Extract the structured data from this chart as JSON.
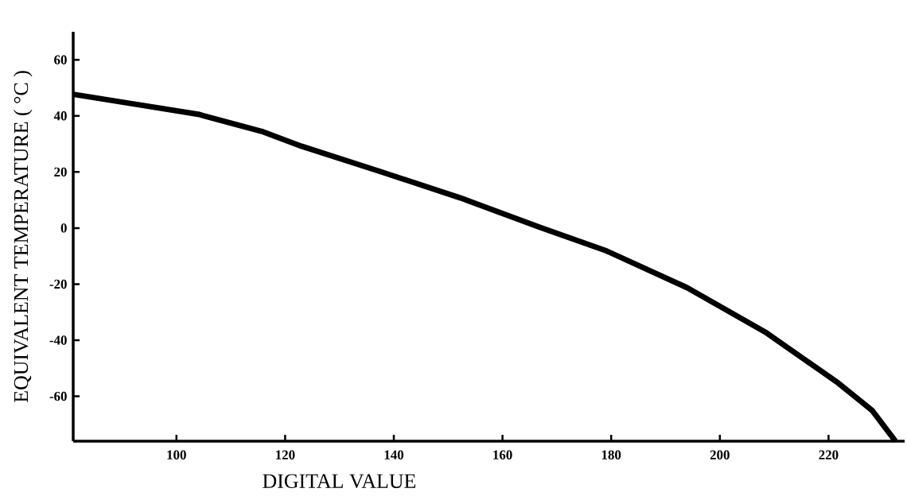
{
  "chart_data": {
    "type": "line",
    "xlabel": "DIGITAL VALUE",
    "ylabel": "EQUIVALENT TEMPERATURE ( °C )",
    "x": [
      81,
      92,
      104,
      116,
      123,
      137.6,
      152.2,
      166.8,
      179.2,
      194,
      208.6,
      221.8,
      228,
      232.3
    ],
    "values": [
      47.7,
      44.3,
      40.6,
      34.3,
      29.2,
      20.1,
      10.8,
      0.3,
      -8.2,
      -21.3,
      -37.4,
      -55.3,
      -65,
      -76
    ],
    "color": "#000000",
    "marker": "none",
    "line_style": "solid",
    "grid": false,
    "xlim": [
      81,
      234
    ],
    "ylim": [
      -76,
      70
    ],
    "xticks": [
      100,
      120,
      140,
      160,
      180,
      200,
      220
    ],
    "yticks": [
      -60,
      -40,
      -20,
      0,
      20,
      40,
      60
    ]
  }
}
